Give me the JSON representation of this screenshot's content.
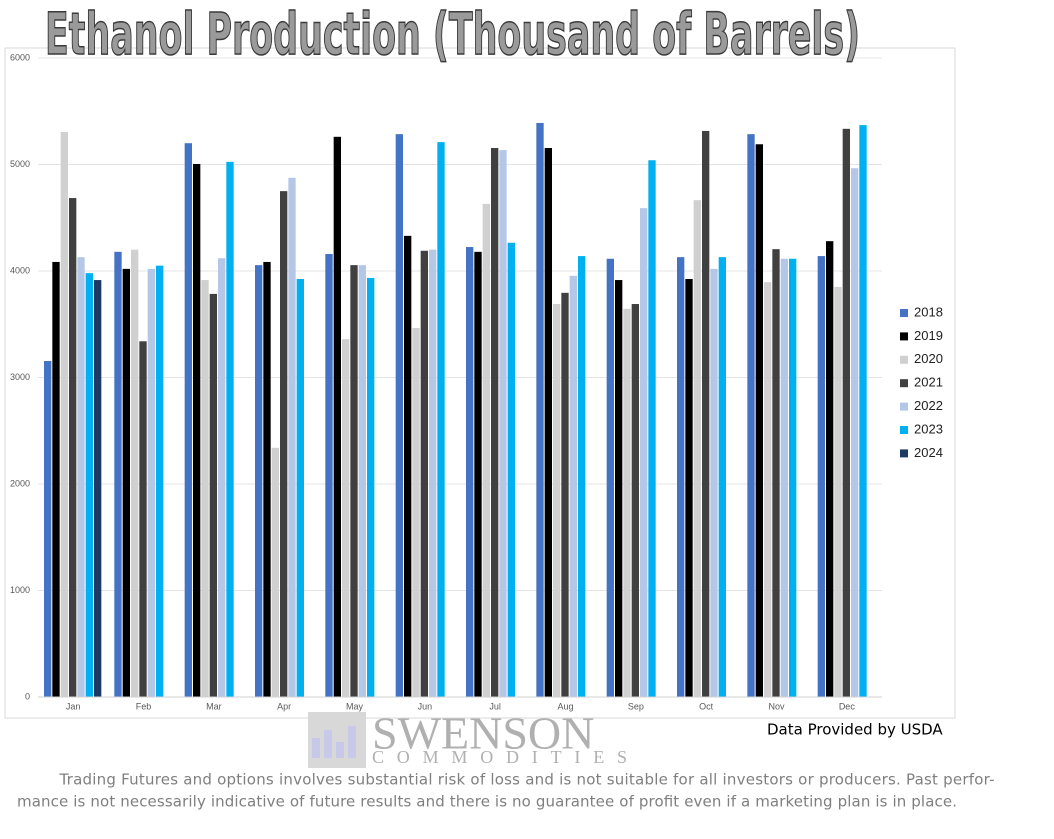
{
  "chart_data": {
    "type": "bar",
    "title": "Ethanol Production (Thousand of Barrels)",
    "categories": [
      "Jan",
      "Feb",
      "Mar",
      "Apr",
      "May",
      "Jun",
      "Jul",
      "Aug",
      "Sep",
      "Oct",
      "Nov",
      "Dec"
    ],
    "series": [
      {
        "name": "2018",
        "color": "#4472c4",
        "values": [
          3155,
          4180,
          5200,
          4055,
          4160,
          5285,
          4225,
          5390,
          4115,
          4130,
          5285,
          4140
        ]
      },
      {
        "name": "2019",
        "color": "#000000",
        "values": [
          4085,
          4020,
          5005,
          4085,
          5260,
          4330,
          4180,
          5155,
          3915,
          3925,
          5190,
          4280
        ]
      },
      {
        "name": "2020",
        "color": "#d0d0d0",
        "values": [
          5305,
          4200,
          3915,
          2340,
          3360,
          3465,
          4630,
          3690,
          3645,
          4665,
          3895,
          3850
        ]
      },
      {
        "name": "2021",
        "color": "#404040",
        "values": [
          4685,
          3340,
          3785,
          4750,
          4055,
          4190,
          5155,
          3795,
          3690,
          5315,
          4205,
          5335
        ]
      },
      {
        "name": "2022",
        "color": "#b4c7e7",
        "values": [
          4130,
          4020,
          4120,
          4875,
          4055,
          4200,
          5135,
          3955,
          4590,
          4020,
          4115,
          4965
        ]
      },
      {
        "name": "2023",
        "color": "#00b0f0",
        "values": [
          3980,
          4050,
          5025,
          3925,
          3935,
          5210,
          4265,
          4140,
          5040,
          4130,
          4115,
          5370
        ]
      },
      {
        "name": "2024",
        "color": "#203864",
        "values": [
          3915,
          null,
          null,
          null,
          null,
          null,
          null,
          null,
          null,
          null,
          null,
          null
        ]
      }
    ],
    "ylim": [
      0,
      6000
    ],
    "yticks": [
      0,
      1000,
      2000,
      3000,
      4000,
      5000,
      6000
    ],
    "grid": true,
    "legend": "right",
    "source": "Data Provided by USDA",
    "logo": [
      "SWENSON",
      "COMMODITIES"
    ],
    "disclaimer": [
      "Trading Futures and options involves substantial risk of loss and is not suitable for all investors or producers. Past perfor-",
      "mance is not necessarily indicative of future results and there is no guarantee of profit even if a marketing plan is in place."
    ]
  }
}
